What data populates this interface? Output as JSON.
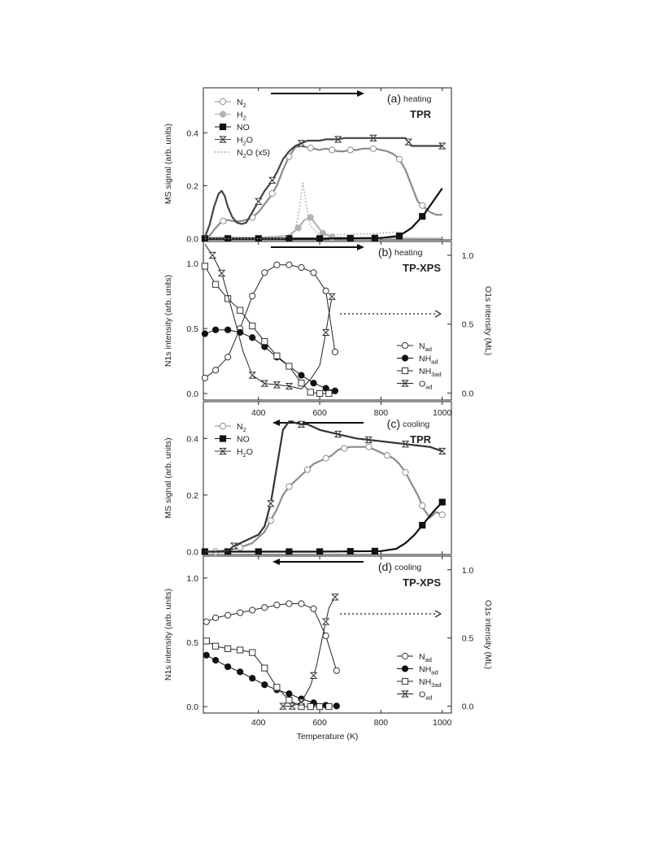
{
  "x_axis_label": "Temperature (K)",
  "chart_data": [
    {
      "id": "a",
      "type": "line",
      "panel_tag": "(a)",
      "panel_type": "heating",
      "panel_name": "TPR",
      "ylabel": "MS signal (arb. units)",
      "xlim": [
        220,
        1030
      ],
      "ylim": [
        -0.005,
        0.57
      ],
      "yticks": [
        "0.0",
        "0.2",
        "0.4"
      ],
      "xticks": [],
      "arrow_direction": "right",
      "legend": [
        {
          "base": "N",
          "sub": "2",
          "post": ""
        },
        {
          "base": "H",
          "sub": "2",
          "post": ""
        },
        {
          "base": "NO",
          "sub": "",
          "post": ""
        },
        {
          "base": "H",
          "sub": "2",
          "post": "O"
        },
        {
          "base": "N",
          "sub": "2",
          "post": "O (x5)"
        }
      ],
      "series": [
        {
          "name": "N2",
          "color": "#8c8c8c",
          "marker": "circle-open",
          "x": [
            225,
            240,
            260,
            280,
            300,
            320,
            340,
            360,
            380,
            400,
            420,
            440,
            460,
            480,
            500,
            520,
            540,
            560,
            580,
            600,
            620,
            640,
            660,
            680,
            700,
            720,
            740,
            760,
            780,
            800,
            820,
            840,
            860,
            880,
            900,
            920,
            940,
            960,
            980,
            1000
          ],
          "y": [
            0.0,
            0.01,
            0.04,
            0.065,
            0.07,
            0.065,
            0.065,
            0.07,
            0.08,
            0.1,
            0.13,
            0.16,
            0.2,
            0.26,
            0.31,
            0.345,
            0.35,
            0.345,
            0.34,
            0.335,
            0.34,
            0.335,
            0.33,
            0.33,
            0.335,
            0.335,
            0.34,
            0.34,
            0.34,
            0.335,
            0.33,
            0.32,
            0.3,
            0.26,
            0.2,
            0.14,
            0.12,
            0.1,
            0.09,
            0.09
          ],
          "marker_x": [
            285,
            380,
            445,
            500,
            570,
            640,
            700,
            775,
            860,
            935
          ]
        },
        {
          "name": "H2",
          "color": "#b4b4b4",
          "marker": "circle-filled",
          "x": [
            225,
            400,
            500,
            530,
            550,
            570,
            590,
            610,
            640,
            700,
            1000
          ],
          "y": [
            0.003,
            0.003,
            0.01,
            0.04,
            0.07,
            0.08,
            0.05,
            0.02,
            0.005,
            0.002,
            0.0
          ],
          "marker_x": [
            530,
            570,
            610,
            640
          ]
        },
        {
          "name": "NO",
          "color": "#111111",
          "marker": "square-filled",
          "x": [
            225,
            400,
            600,
            800,
            860,
            900,
            940,
            970,
            1000
          ],
          "y": [
            0.0,
            0.0,
            0.0,
            0.002,
            0.01,
            0.04,
            0.09,
            0.14,
            0.19
          ],
          "marker_x": [
            225,
            300,
            400,
            500,
            600,
            700,
            780,
            860,
            935
          ]
        },
        {
          "name": "H2O",
          "color": "#444444",
          "marker": "hourglass",
          "x": [
            225,
            240,
            255,
            270,
            280,
            290,
            300,
            315,
            330,
            345,
            360,
            380,
            400,
            420,
            440,
            460,
            480,
            500,
            520,
            540,
            560,
            580,
            600,
            620,
            640,
            660,
            680,
            700,
            720,
            740,
            760,
            780,
            800,
            840,
            880,
            900,
            940,
            1000
          ],
          "y": [
            0.005,
            0.05,
            0.12,
            0.17,
            0.18,
            0.16,
            0.12,
            0.08,
            0.06,
            0.055,
            0.06,
            0.1,
            0.14,
            0.18,
            0.21,
            0.25,
            0.3,
            0.33,
            0.35,
            0.36,
            0.37,
            0.37,
            0.37,
            0.375,
            0.375,
            0.375,
            0.38,
            0.38,
            0.38,
            0.38,
            0.38,
            0.38,
            0.38,
            0.38,
            0.38,
            0.35,
            0.35,
            0.35
          ],
          "marker_x": [
            400,
            445,
            540,
            660,
            775,
            890,
            1000
          ]
        },
        {
          "name": "N2O (x5)",
          "color": "#9a9a9a",
          "dashed": true,
          "marker": "none",
          "x": [
            225,
            480,
            520,
            535,
            545,
            555,
            565,
            590,
            640,
            700,
            800,
            860
          ],
          "y": [
            0.0,
            0.0,
            0.03,
            0.12,
            0.21,
            0.14,
            0.06,
            0.02,
            0.015,
            0.015,
            0.02,
            0.025
          ],
          "marker_x": []
        }
      ]
    },
    {
      "id": "b",
      "type": "line",
      "panel_tag": "(b)",
      "panel_type": "heating",
      "panel_name": "TP-XPS",
      "ylabel": "N1s intensity (arb. units)",
      "ylabel_right": "O1s intensity (ML)",
      "xlim": [
        220,
        1030
      ],
      "ylim": [
        -0.05,
        1.17
      ],
      "ylim_right": [
        -0.05,
        1.1
      ],
      "yticks": [
        "0.0",
        "0.5",
        "1.0"
      ],
      "yticks_right": [
        "0.0",
        "0.5",
        "1.0"
      ],
      "xticks": [],
      "arrow_direction": "right",
      "dotted_arrow": true,
      "legend": [
        {
          "base": "N",
          "sub": "ad",
          "post": ""
        },
        {
          "base": "NH",
          "sub": "ad",
          "post": ""
        },
        {
          "base": "NH",
          "sub": "3ad",
          "post": ""
        },
        {
          "base": "O",
          "sub": "ad",
          "post": ""
        }
      ],
      "series": [
        {
          "name": "Nad",
          "color": "#222222",
          "marker": "circle-open",
          "x": [
            225,
            260,
            300,
            340,
            380,
            420,
            460,
            500,
            540,
            580,
            620,
            650
          ],
          "y": [
            0.12,
            0.18,
            0.28,
            0.5,
            0.75,
            0.93,
            0.99,
            0.99,
            0.97,
            0.93,
            0.79,
            0.32
          ],
          "marker_x": [
            225,
            260,
            300,
            340,
            380,
            420,
            460,
            500,
            540,
            580,
            620,
            650
          ]
        },
        {
          "name": "NHad",
          "color": "#111111",
          "marker": "circle-filled",
          "x": [
            225,
            260,
            300,
            340,
            380,
            420,
            460,
            500,
            540,
            580,
            620,
            650
          ],
          "y": [
            0.46,
            0.49,
            0.49,
            0.47,
            0.43,
            0.36,
            0.28,
            0.21,
            0.14,
            0.08,
            0.04,
            0.02
          ],
          "marker_x": [
            225,
            260,
            300,
            340,
            380,
            420,
            460,
            500,
            540,
            580,
            620,
            650
          ]
        },
        {
          "name": "NH3ad",
          "color": "#222222",
          "marker": "square-open",
          "x": [
            225,
            260,
            300,
            340,
            380,
            420,
            460,
            500,
            540,
            570,
            600,
            630,
            650
          ],
          "y": [
            0.98,
            0.84,
            0.73,
            0.64,
            0.52,
            0.4,
            0.29,
            0.21,
            0.08,
            0.01,
            0.0,
            0.0,
            0.0
          ],
          "marker_x": [
            225,
            260,
            300,
            340,
            380,
            420,
            460,
            500,
            540,
            570,
            600,
            630
          ]
        },
        {
          "name": "Oad",
          "color": "#222222",
          "marker": "hourglass",
          "axis": "right",
          "x": [
            225,
            250,
            280,
            320,
            350,
            380,
            420,
            460,
            500,
            540,
            570,
            600,
            620,
            640
          ],
          "y": [
            1.08,
            1.0,
            0.87,
            0.55,
            0.3,
            0.13,
            0.07,
            0.06,
            0.05,
            0.03,
            0.1,
            0.2,
            0.44,
            0.7
          ],
          "marker_x": [
            250,
            280,
            380,
            420,
            460,
            500,
            620,
            640
          ]
        }
      ]
    },
    {
      "id": "c",
      "type": "line",
      "panel_tag": "(c)",
      "panel_type": "cooling",
      "panel_name": "TPR",
      "ylabel": "MS signal (arb. units)",
      "xlim": [
        220,
        1030
      ],
      "ylim": [
        -0.01,
        0.53
      ],
      "yticks": [
        "0.0",
        "0.2",
        "0.4"
      ],
      "xticks_top": [
        "400",
        "600",
        "800",
        "1000"
      ],
      "xticks": [],
      "arrow_direction": "left",
      "legend": [
        {
          "base": "N",
          "sub": "2",
          "post": ""
        },
        {
          "base": "NO",
          "sub": "",
          "post": ""
        },
        {
          "base": "H",
          "sub": "2",
          "post": "O"
        }
      ],
      "series": [
        {
          "name": "N2",
          "color": "#8c8c8c",
          "marker": "circle-open",
          "x": [
            225,
            260,
            300,
            340,
            380,
            420,
            440,
            460,
            480,
            500,
            540,
            560,
            580,
            600,
            620,
            640,
            660,
            680,
            700,
            720,
            740,
            760,
            780,
            800,
            820,
            840,
            860,
            880,
            900,
            920,
            940,
            960,
            980,
            1000
          ],
          "y": [
            0.0,
            0.0,
            0.005,
            0.015,
            0.03,
            0.07,
            0.11,
            0.15,
            0.2,
            0.23,
            0.27,
            0.29,
            0.31,
            0.32,
            0.33,
            0.34,
            0.36,
            0.365,
            0.37,
            0.37,
            0.37,
            0.37,
            0.36,
            0.35,
            0.34,
            0.33,
            0.31,
            0.28,
            0.24,
            0.2,
            0.15,
            0.12,
            0.14,
            0.13
          ],
          "marker_x": [
            260,
            340,
            440,
            500,
            560,
            620,
            680,
            760,
            820,
            880,
            935,
            1000
          ]
        },
        {
          "name": "NO",
          "color": "#111111",
          "marker": "square-filled",
          "x": [
            225,
            400,
            600,
            800,
            850,
            880,
            910,
            940,
            970,
            1000
          ],
          "y": [
            0.0,
            0.0,
            0.0,
            0.002,
            0.01,
            0.03,
            0.06,
            0.1,
            0.14,
            0.175
          ],
          "marker_x": [
            225,
            300,
            400,
            500,
            600,
            700,
            780,
            935,
            1000
          ]
        },
        {
          "name": "H2O",
          "color": "#333333",
          "marker": "hourglass",
          "x": [
            225,
            260,
            300,
            320,
            340,
            360,
            380,
            400,
            420,
            440,
            460,
            480,
            500,
            510,
            520,
            540,
            560,
            580,
            600,
            640,
            680,
            720,
            760,
            800,
            840,
            880,
            920,
            960,
            1000
          ],
          "y": [
            0.0,
            0.0,
            0.003,
            0.02,
            0.03,
            0.04,
            0.05,
            0.06,
            0.09,
            0.17,
            0.3,
            0.43,
            0.46,
            0.46,
            0.455,
            0.45,
            0.45,
            0.44,
            0.43,
            0.42,
            0.41,
            0.4,
            0.395,
            0.39,
            0.385,
            0.38,
            0.375,
            0.37,
            0.355
          ],
          "marker_x": [
            320,
            440,
            540,
            660,
            760,
            880,
            1000
          ]
        }
      ]
    },
    {
      "id": "d",
      "type": "line",
      "panel_tag": "(d)",
      "panel_type": "cooling",
      "panel_name": "TP-XPS",
      "ylabel": "N1s intensity (arb. units)",
      "ylabel_right": "O1s intensity (ML)",
      "xlabel": "Temperature (K)",
      "xlim": [
        220,
        1030
      ],
      "ylim": [
        -0.05,
        1.17
      ],
      "ylim_right": [
        -0.05,
        1.1
      ],
      "yticks": [
        "0.0",
        "0.5",
        "1.0"
      ],
      "yticks_right": [
        "0.0",
        "0.5",
        "1.0"
      ],
      "xticks": [
        "400",
        "600",
        "800",
        "1000"
      ],
      "arrow_direction": "left",
      "dotted_arrow": true,
      "legend": [
        {
          "base": "N",
          "sub": "ad",
          "post": ""
        },
        {
          "base": "NH",
          "sub": "ad",
          "post": ""
        },
        {
          "base": "NH",
          "sub": "3ad",
          "post": ""
        },
        {
          "base": "O",
          "sub": "ad",
          "post": ""
        }
      ],
      "series": [
        {
          "name": "Nad",
          "color": "#222222",
          "marker": "circle-open",
          "x": [
            230,
            260,
            300,
            340,
            380,
            420,
            460,
            500,
            540,
            580,
            620,
            655
          ],
          "y": [
            0.66,
            0.69,
            0.71,
            0.73,
            0.75,
            0.77,
            0.79,
            0.8,
            0.8,
            0.76,
            0.55,
            0.28
          ],
          "marker_x": [
            230,
            260,
            300,
            340,
            380,
            420,
            460,
            500,
            540,
            580,
            620,
            655
          ]
        },
        {
          "name": "NHad",
          "color": "#111111",
          "marker": "circle-filled",
          "x": [
            230,
            260,
            300,
            340,
            380,
            420,
            460,
            500,
            540,
            580,
            620,
            655
          ],
          "y": [
            0.4,
            0.36,
            0.31,
            0.27,
            0.22,
            0.17,
            0.13,
            0.1,
            0.06,
            0.03,
            0.01,
            0.005
          ],
          "marker_x": [
            230,
            260,
            300,
            340,
            380,
            420,
            460,
            500,
            540,
            580,
            620,
            655
          ]
        },
        {
          "name": "NH3ad",
          "color": "#222222",
          "marker": "square-open",
          "x": [
            230,
            260,
            300,
            340,
            380,
            420,
            460,
            500,
            540,
            570,
            600,
            630
          ],
          "y": [
            0.51,
            0.47,
            0.45,
            0.44,
            0.42,
            0.3,
            0.15,
            0.05,
            0.0,
            0.0,
            0.0,
            0.0
          ],
          "marker_x": [
            230,
            260,
            300,
            340,
            380,
            420,
            460,
            500,
            540,
            570,
            600,
            630
          ]
        },
        {
          "name": "Oad",
          "color": "#222222",
          "marker": "hourglass",
          "axis": "right",
          "x": [
            480,
            510,
            540,
            570,
            590,
            610,
            630,
            650
          ],
          "y": [
            0.0,
            0.0,
            0.03,
            0.15,
            0.3,
            0.52,
            0.72,
            0.8
          ],
          "marker_x": [
            480,
            510,
            540,
            580,
            620,
            650
          ]
        }
      ]
    }
  ]
}
